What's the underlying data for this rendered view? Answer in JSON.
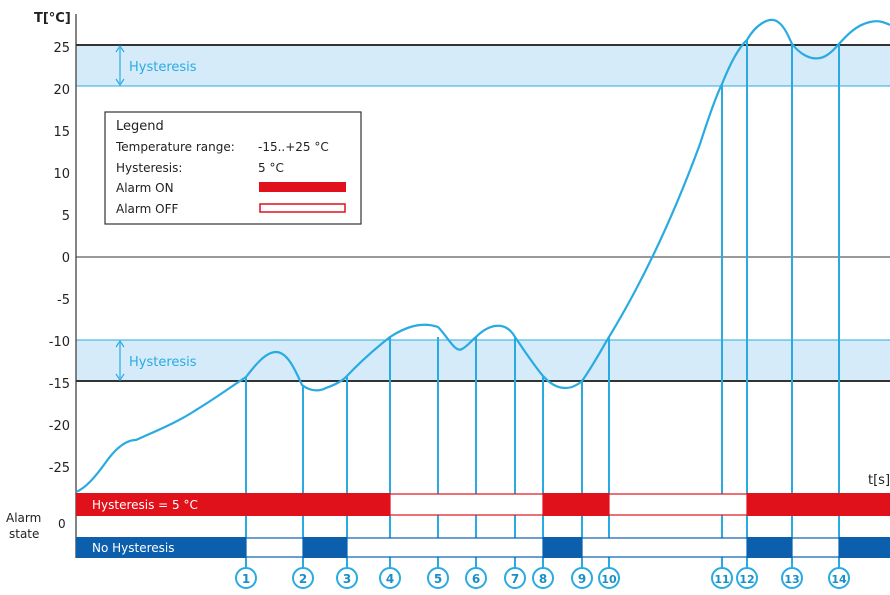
{
  "chart_data": {
    "type": "line",
    "y_axis_label": "T[°C]",
    "x_axis_label": "t[s]",
    "origin_label": "0",
    "y_ticks": [
      "25",
      "20",
      "15",
      "10",
      "5",
      "0",
      "-5",
      "-10",
      "-15",
      "-20",
      "-25"
    ],
    "ylim": [
      -28,
      27
    ],
    "grid": "off",
    "threshold_high": 25,
    "threshold_low": -15,
    "hysteresis_label": "Hysteresis",
    "markers": [
      "1",
      "2",
      "3",
      "4",
      "5",
      "6",
      "7",
      "8",
      "9",
      "10",
      "11",
      "12",
      "13",
      "14"
    ]
  },
  "legend": {
    "title": "Legend",
    "range_label": "Temperature range:",
    "range_value": "-15..+25 °C",
    "hyst_label": "Hysteresis:",
    "hyst_value": "5 °C",
    "on_label": "Alarm ON",
    "off_label": "Alarm OFF"
  },
  "alarm": {
    "state_label": "Alarm state",
    "hyst_row_label": "Hysteresis = 5 °C",
    "nohyst_row_label": "No Hysteresis"
  },
  "colors": {
    "curve": "#29abe2",
    "band": "#d6ebf9",
    "alarm_on": "#e0111a",
    "no_hyst": "#0b5fad",
    "threshold": "#333333"
  }
}
